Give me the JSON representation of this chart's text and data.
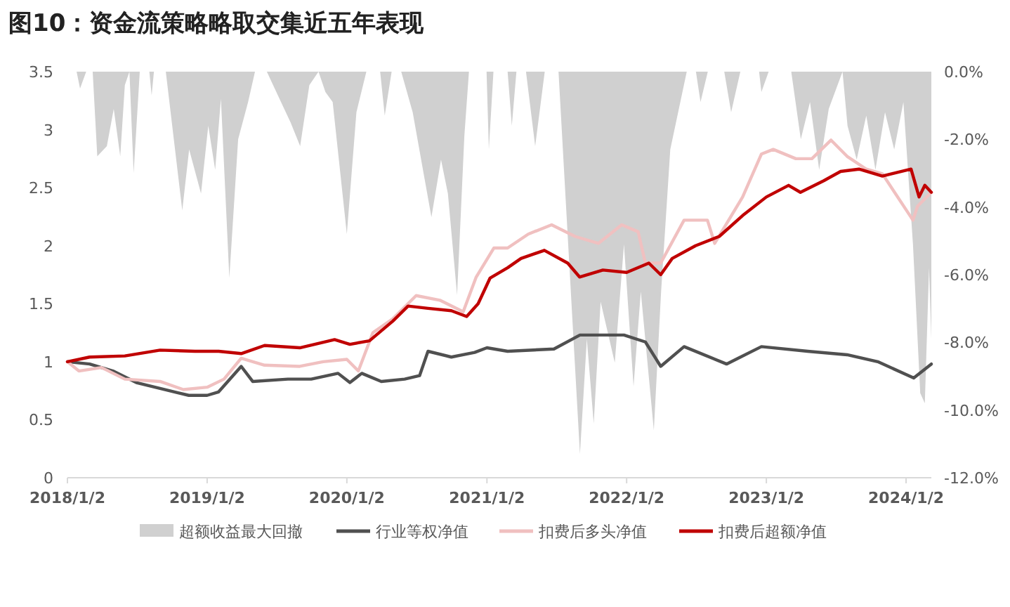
{
  "chart_data": {
    "type": "line",
    "title": "图10：资金流策略略取交集近五年表现",
    "xlim": [
      "2018-01-02",
      "2024-03-08"
    ],
    "xticks": [
      {
        "value": "2018-01-02",
        "label": "2018/1/2"
      },
      {
        "value": "2019-01-02",
        "label": "2019/1/2"
      },
      {
        "value": "2020-01-02",
        "label": "2020/1/2"
      },
      {
        "value": "2021-01-02",
        "label": "2021/1/2"
      },
      {
        "value": "2022-01-02",
        "label": "2022/1/2"
      },
      {
        "value": "2023-01-02",
        "label": "2023/1/2"
      },
      {
        "value": "2024-01-02",
        "label": "2024/1/2"
      }
    ],
    "ylim": [
      0,
      3.5
    ],
    "yticks": [
      0,
      0.5,
      1,
      1.5,
      2,
      2.5,
      3,
      3.5
    ],
    "y2lim": [
      -12,
      0
    ],
    "y2ticks": [
      {
        "value": 0,
        "label": "0.0%"
      },
      {
        "value": -2,
        "label": "-2.0%"
      },
      {
        "value": -4,
        "label": "-4.0%"
      },
      {
        "value": -6,
        "label": "-6.0%"
      },
      {
        "value": -8,
        "label": "-8.0%"
      },
      {
        "value": -10,
        "label": "-10.0%"
      },
      {
        "value": -12,
        "label": "-12.0%"
      }
    ],
    "legend": "bottom",
    "grid": false,
    "marker": "none",
    "line_style": "solid",
    "series": [
      {
        "name": "超额收益最大回撤",
        "type": "area",
        "axis": "y2",
        "color": "#d0d0d0",
        "x": [
          "2018-01-02",
          "2018-01-26",
          "2018-02-04",
          "2018-02-20",
          "2018-03-09",
          "2018-03-21",
          "2018-04-15",
          "2018-05-03",
          "2018-05-20",
          "2018-06-01",
          "2018-06-13",
          "2018-06-24",
          "2018-07-10",
          "2018-08-04",
          "2018-08-10",
          "2018-08-16",
          "2018-09-04",
          "2018-09-16",
          "2018-10-29",
          "2018-11-16",
          "2018-12-17",
          "2019-01-05",
          "2019-01-23",
          "2019-02-07",
          "2019-03-01",
          "2019-03-24",
          "2019-04-19",
          "2019-05-07",
          "2019-06-07",
          "2019-07-14",
          "2019-08-08",
          "2019-09-02",
          "2019-09-26",
          "2019-10-20",
          "2019-11-07",
          "2019-11-26",
          "2020-01-02",
          "2020-01-27",
          "2020-02-22",
          "2020-03-29",
          "2020-04-10",
          "2020-04-28",
          "2020-05-23",
          "2020-06-22",
          "2020-08-10",
          "2020-09-04",
          "2020-09-22",
          "2020-10-16",
          "2020-11-04",
          "2020-11-16",
          "2021-01-01",
          "2021-01-07",
          "2021-01-19",
          "2021-02-25",
          "2021-03-08",
          "2021-03-20",
          "2021-04-14",
          "2021-05-08",
          "2021-06-02",
          "2021-06-26",
          "2021-07-08",
          "2021-08-26",
          "2021-09-02",
          "2021-09-20",
          "2021-10-08",
          "2021-10-26",
          "2021-12-02",
          "2021-12-26",
          "2022-01-20",
          "2022-02-08",
          "2022-03-14",
          "2022-04-02",
          "2022-04-26",
          "2022-06-08",
          "2022-07-02",
          "2022-07-14",
          "2022-08-02",
          "2022-09-14",
          "2022-10-02",
          "2022-10-26",
          "2022-12-14",
          "2022-12-20",
          "2023-01-08",
          "2023-03-08",
          "2023-04-02",
          "2023-04-26",
          "2023-05-20",
          "2023-06-14",
          "2023-07-20",
          "2023-08-02",
          "2023-08-26",
          "2023-09-20",
          "2023-10-14",
          "2023-11-08",
          "2023-12-02",
          "2023-12-26",
          "2024-01-20",
          "2024-02-08",
          "2024-02-20",
          "2024-03-02",
          "2024-03-08"
        ],
        "values": [
          0,
          0,
          -0.5,
          0,
          0,
          -2.5,
          -2.2,
          -1.1,
          -2.5,
          -0.4,
          0,
          -3.0,
          0,
          0,
          -0.7,
          0,
          0,
          0,
          -4.1,
          -2.3,
          -3.6,
          -1.6,
          -2.9,
          -0.8,
          -6.1,
          -2.0,
          -0.9,
          0,
          0,
          -0.9,
          -1.5,
          -2.2,
          -0.4,
          0,
          -0.6,
          -0.9,
          -4.8,
          -1.2,
          0,
          0,
          -1.3,
          0,
          0,
          -1.2,
          -4.3,
          -2.6,
          -3.6,
          -6.6,
          -1.9,
          0,
          0,
          -2.3,
          0,
          0,
          -1.6,
          0,
          0,
          -2.2,
          0,
          0,
          0,
          -9.9,
          -11.3,
          -7.9,
          -10.4,
          -6.8,
          -8.6,
          -5.1,
          -9.3,
          -6.5,
          -10.6,
          -6.5,
          -2.3,
          0,
          0,
          -0.9,
          0,
          0,
          -1.2,
          0,
          0,
          -0.6,
          0,
          0,
          -2.0,
          -0.9,
          -2.9,
          -1.1,
          0,
          -1.6,
          -2.6,
          -1.3,
          -2.9,
          -1.2,
          -2.3,
          -0.9,
          -5.1,
          -9.5,
          -9.8,
          -5.8,
          -7.9
        ]
      },
      {
        "name": "行业等权净值",
        "color": "#505050",
        "x": [
          "2018-01-02",
          "2018-03-01",
          "2018-05-01",
          "2018-07-01",
          "2018-09-01",
          "2018-11-15",
          "2019-01-02",
          "2019-02-01",
          "2019-04-01",
          "2019-05-01",
          "2019-08-01",
          "2019-10-01",
          "2019-12-10",
          "2020-01-10",
          "2020-02-10",
          "2020-04-01",
          "2020-06-01",
          "2020-07-10",
          "2020-08-01",
          "2020-10-01",
          "2020-12-01",
          "2021-01-02",
          "2021-02-25",
          "2021-06-26",
          "2021-09-02",
          "2021-12-26",
          "2022-02-20",
          "2022-04-01",
          "2022-06-01",
          "2022-09-20",
          "2022-12-20",
          "2023-04-20",
          "2023-08-01",
          "2023-10-20",
          "2024-01-22",
          "2024-03-08"
        ],
        "values": [
          1.0,
          0.98,
          0.92,
          0.82,
          0.77,
          0.71,
          0.71,
          0.74,
          0.96,
          0.83,
          0.85,
          0.85,
          0.9,
          0.82,
          0.9,
          0.83,
          0.85,
          0.88,
          1.09,
          1.04,
          1.08,
          1.12,
          1.09,
          1.11,
          1.23,
          1.23,
          1.17,
          0.96,
          1.13,
          0.98,
          1.13,
          1.09,
          1.06,
          1.0,
          0.86,
          0.98
        ]
      },
      {
        "name": "扣费后多头净值",
        "color": "#f0c0c0",
        "x": [
          "2018-01-02",
          "2018-02-01",
          "2018-04-01",
          "2018-06-01",
          "2018-09-01",
          "2018-11-01",
          "2019-01-02",
          "2019-02-15",
          "2019-04-01",
          "2019-06-01",
          "2019-09-01",
          "2019-11-01",
          "2020-01-02",
          "2020-02-01",
          "2020-03-10",
          "2020-05-01",
          "2020-07-01",
          "2020-09-01",
          "2020-11-01",
          "2020-12-05",
          "2021-01-20",
          "2021-02-25",
          "2021-04-20",
          "2021-06-20",
          "2021-08-20",
          "2021-10-20",
          "2021-12-20",
          "2022-02-01",
          "2022-02-20",
          "2022-04-01",
          "2022-06-01",
          "2022-08-01",
          "2022-08-20",
          "2022-11-01",
          "2022-12-20",
          "2023-01-20",
          "2023-03-20",
          "2023-05-01",
          "2023-06-20",
          "2023-08-01",
          "2023-09-20",
          "2023-11-01",
          "2024-01-20",
          "2024-02-01",
          "2024-03-08"
        ],
        "values": [
          1.0,
          0.92,
          0.95,
          0.85,
          0.83,
          0.76,
          0.78,
          0.85,
          1.03,
          0.97,
          0.96,
          1.0,
          1.02,
          0.92,
          1.25,
          1.37,
          1.57,
          1.53,
          1.43,
          1.73,
          1.98,
          1.98,
          2.1,
          2.18,
          2.08,
          2.02,
          2.18,
          2.12,
          1.85,
          1.85,
          2.22,
          2.22,
          2.02,
          2.42,
          2.79,
          2.83,
          2.75,
          2.75,
          2.91,
          2.77,
          2.66,
          2.62,
          2.22,
          2.34,
          2.46
        ]
      },
      {
        "name": "扣费后超额净值",
        "color": "#c00000",
        "x": [
          "2018-01-02",
          "2018-03-01",
          "2018-06-01",
          "2018-09-01",
          "2018-12-01",
          "2019-02-01",
          "2019-04-01",
          "2019-06-01",
          "2019-09-01",
          "2019-12-01",
          "2020-01-10",
          "2020-03-01",
          "2020-05-01",
          "2020-06-10",
          "2020-08-01",
          "2020-10-01",
          "2020-11-10",
          "2020-12-10",
          "2021-01-10",
          "2021-02-25",
          "2021-04-01",
          "2021-06-01",
          "2021-08-01",
          "2021-09-01",
          "2021-11-01",
          "2022-01-02",
          "2022-03-01",
          "2022-04-01",
          "2022-05-01",
          "2022-07-01",
          "2022-09-01",
          "2022-11-01",
          "2023-01-02",
          "2023-03-01",
          "2023-04-01",
          "2023-06-01",
          "2023-07-15",
          "2023-09-01",
          "2023-11-01",
          "2024-01-15",
          "2024-02-05",
          "2024-02-20",
          "2024-03-08"
        ],
        "values": [
          1.0,
          1.04,
          1.05,
          1.1,
          1.09,
          1.09,
          1.07,
          1.14,
          1.12,
          1.19,
          1.15,
          1.18,
          1.35,
          1.48,
          1.46,
          1.44,
          1.39,
          1.5,
          1.72,
          1.81,
          1.89,
          1.96,
          1.85,
          1.73,
          1.79,
          1.77,
          1.85,
          1.75,
          1.89,
          2.0,
          2.08,
          2.26,
          2.42,
          2.52,
          2.46,
          2.56,
          2.64,
          2.66,
          2.6,
          2.66,
          2.42,
          2.52,
          2.46
        ]
      }
    ]
  }
}
